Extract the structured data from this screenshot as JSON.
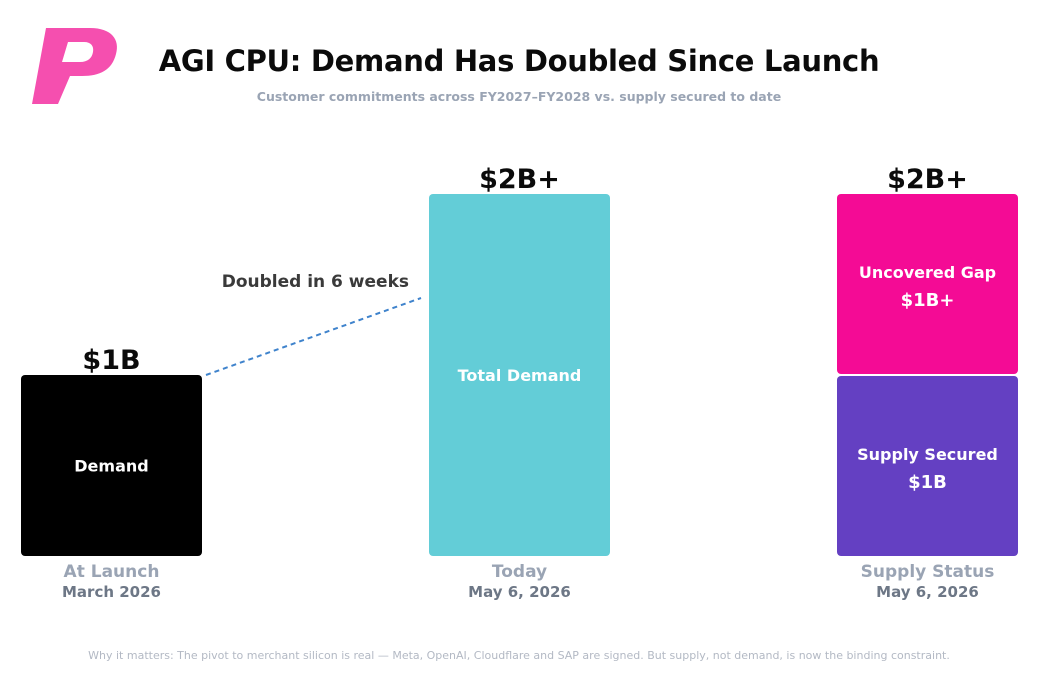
{
  "header": {
    "title": "AGI CPU: Demand Has Doubled Since Launch",
    "subtitle": "Customer commitments across FY2027–FY2028 vs. supply secured to date"
  },
  "footer": {
    "text": "Why it matters:  The pivot to merchant silicon is real — Meta, OpenAI, Cloudflare and SAP are signed. But supply, not demand, is now the binding constraint."
  },
  "chart_data": {
    "type": "bar",
    "unit": "$B",
    "ylim": [
      0,
      2
    ],
    "grid": false,
    "legend": "none",
    "categories": [
      {
        "label": "At Launch",
        "date": "March 2026"
      },
      {
        "label": "Today",
        "date": "May 6, 2026"
      },
      {
        "label": "Supply Status",
        "date": "May 6, 2026"
      }
    ],
    "bars": [
      {
        "category_index": 0,
        "total_label": "$1B",
        "segments": [
          {
            "name": "Demand",
            "value": 1,
            "value_label": "",
            "color": "#000000"
          }
        ]
      },
      {
        "category_index": 1,
        "total_label": "$2B+",
        "segments": [
          {
            "name": "Total Demand",
            "value": 2,
            "value_label": "",
            "color": "#63cdd7"
          }
        ]
      },
      {
        "category_index": 2,
        "total_label": "$2B+",
        "segments": [
          {
            "name": "Supply Secured",
            "value": 1,
            "value_label": "$1B",
            "color": "#6440c2"
          },
          {
            "name": "Uncovered Gap",
            "value": 1,
            "value_label": "$1B+",
            "color": "#f40b95"
          }
        ]
      }
    ],
    "annotations": [
      {
        "text": "Doubled in 6 weeks",
        "from_bar": 0,
        "to_bar": 1,
        "style": "dashed",
        "color": "#3f83cc"
      }
    ]
  },
  "colors": {
    "logo": "#f54faf",
    "title": "#0b0b0b",
    "subtitle": "#9aa4b4",
    "category_label": "#9aa4b4",
    "category_date": "#6d7786",
    "footer": "#b3b9c4"
  },
  "logo": {
    "icon": "brand-p-logo-icon"
  }
}
